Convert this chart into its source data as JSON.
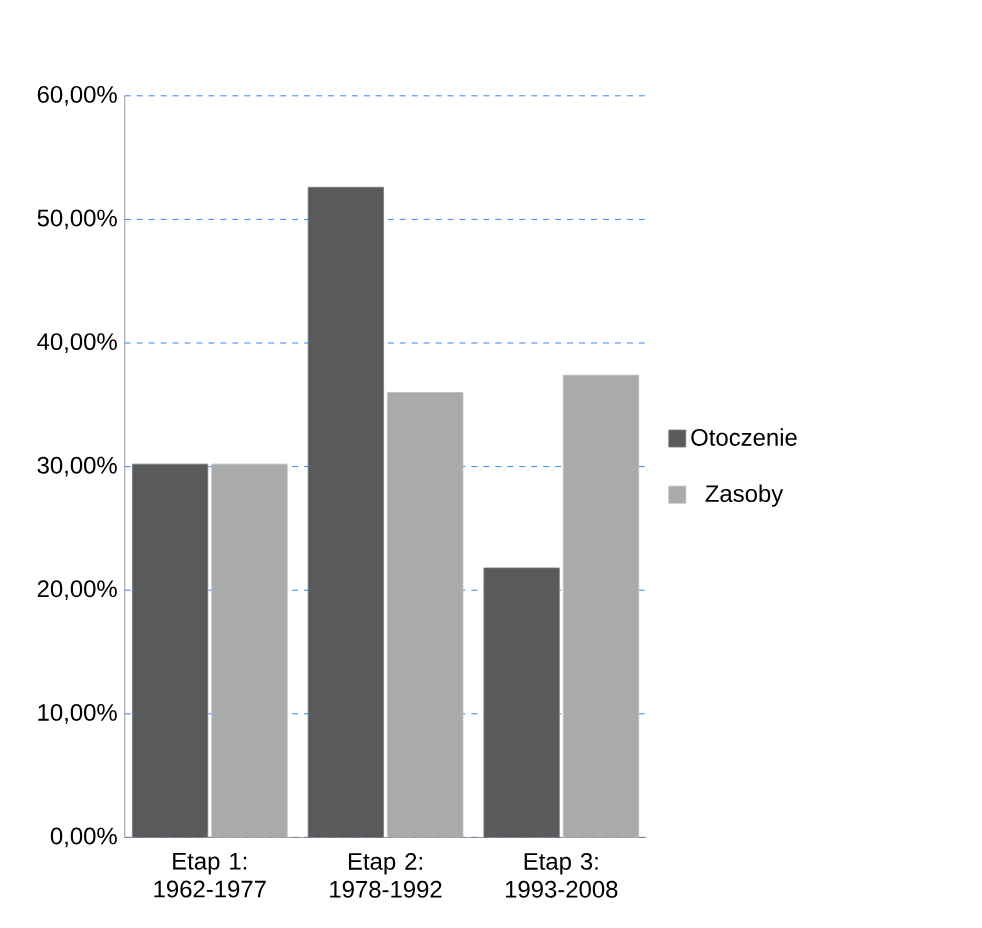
{
  "chart_data": {
    "type": "bar",
    "categories": [
      "Etap 1: 1962-1977",
      "Etap 2: 1978-1992",
      "Etap 3: 1993-2008"
    ],
    "series": [
      {
        "name": "Otoczenie",
        "color": "#595a5c",
        "values": [
          30.2,
          52.6,
          21.8
        ]
      },
      {
        "name": "Zasoby",
        "color": "#a9aaaa",
        "values": [
          30.2,
          36.0,
          37.4
        ]
      }
    ],
    "ylim": [
      0,
      60
    ],
    "yticks": [
      {
        "value": 0,
        "label": "0,00%"
      },
      {
        "value": 10,
        "label": "10,00%"
      },
      {
        "value": 20,
        "label": "20,00%"
      },
      {
        "value": 30,
        "label": "30,00%"
      },
      {
        "value": 40,
        "label": "40,00%"
      },
      {
        "value": 50,
        "label": "50,00%"
      },
      {
        "value": 60,
        "label": "60,00%"
      }
    ],
    "grid": "y",
    "legend": "right"
  }
}
